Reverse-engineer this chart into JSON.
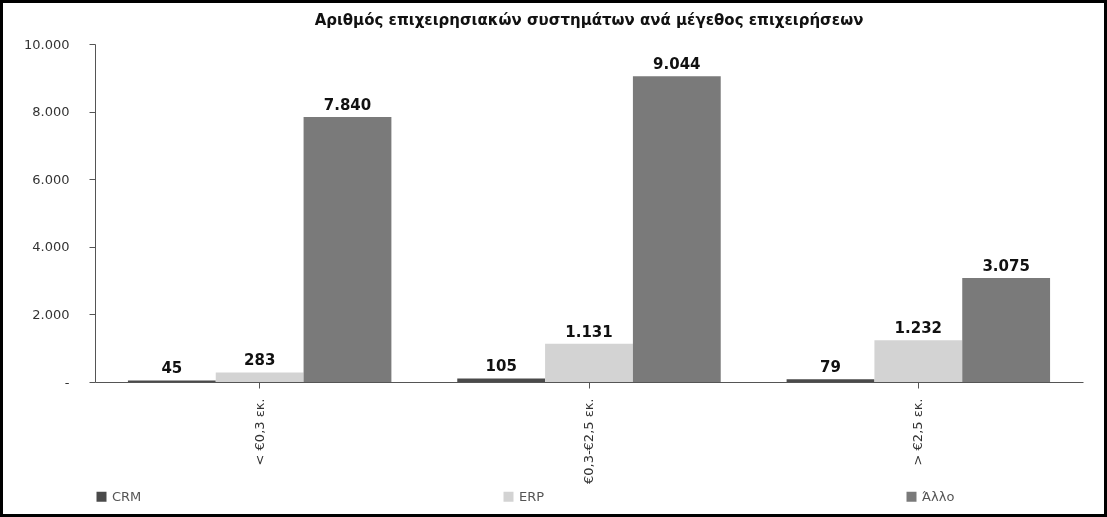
{
  "chart_data": {
    "type": "bar",
    "title": "Αριθμός επιχειρησιακών συστημάτων ανά μέγεθος επιχειρήσεων",
    "categories": [
      "< €0,3 εκ.",
      "€0,3-€2,5 εκ.",
      "> €2,5 εκ."
    ],
    "series": [
      {
        "name": "CRM",
        "color": "#4a4a4a",
        "values": [
          45,
          105,
          79
        ],
        "value_labels": [
          "45",
          "105",
          "79"
        ]
      },
      {
        "name": "ERP",
        "color": "#d3d3d3",
        "values": [
          283,
          1131,
          1232
        ],
        "value_labels": [
          "283",
          "1.131",
          "1.232"
        ]
      },
      {
        "name": "Άλλο",
        "color": "#7a7a7a",
        "values": [
          7840,
          9044,
          3075
        ],
        "value_labels": [
          "7.840",
          "9.044",
          "3.075"
        ]
      }
    ],
    "ylim": [
      0,
      10000
    ],
    "yticks": [
      {
        "value": 0,
        "label": "-"
      },
      {
        "value": 2000,
        "label": "2.000"
      },
      {
        "value": 4000,
        "label": "4.000"
      },
      {
        "value": 6000,
        "label": "6.000"
      },
      {
        "value": 8000,
        "label": "8.000"
      },
      {
        "value": 10000,
        "label": "10.000"
      }
    ],
    "grid": false,
    "legend": "bottom"
  }
}
